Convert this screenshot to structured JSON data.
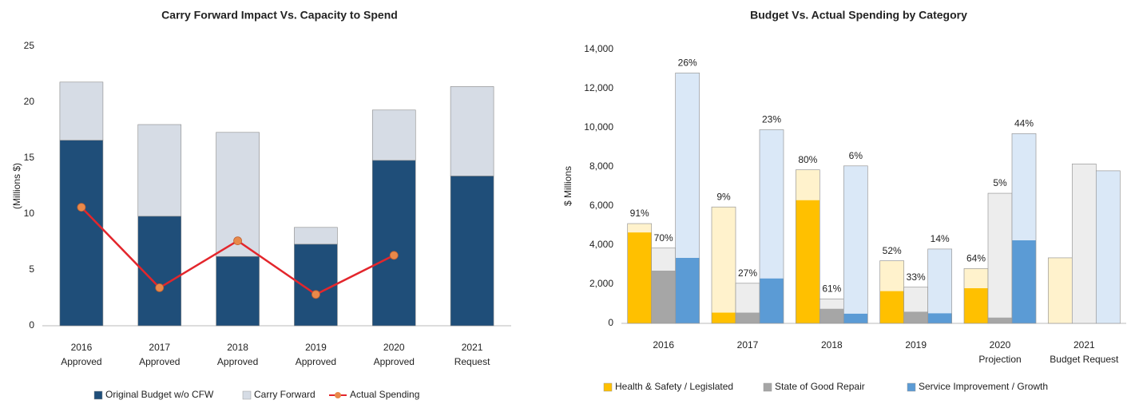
{
  "chart_data": [
    {
      "type": "combo",
      "title": "Carry Forward Impact Vs. Capacity to Spend",
      "ylabel": "(Millions $)",
      "categories": [
        [
          "2016",
          "Approved"
        ],
        [
          "2017",
          "Approved"
        ],
        [
          "2018",
          "Approved"
        ],
        [
          "2019",
          "Approved"
        ],
        [
          "2020",
          "Approved"
        ],
        [
          "2021",
          "Request"
        ]
      ],
      "ylim": [
        0,
        25
      ],
      "yticks": [
        0,
        5,
        10,
        15,
        20,
        25
      ],
      "series": [
        {
          "name": "Original Budget w/o CFW",
          "color": "#1f4e79",
          "values": [
            16.6,
            9.8,
            6.2,
            7.3,
            14.8,
            13.4
          ]
        },
        {
          "name": "Carry Forward",
          "color": "#d6dce5",
          "values": [
            5.2,
            8.2,
            11.1,
            1.5,
            4.5,
            8.0
          ]
        },
        {
          "name": "Actual Spending",
          "type": "line",
          "color": "#e3262c",
          "marker_color": "#e8894a",
          "values": [
            10.6,
            3.4,
            7.6,
            2.8,
            6.3,
            null
          ]
        }
      ]
    },
    {
      "type": "bar",
      "title": "Budget Vs. Actual Spending by Category",
      "ylabel": "$ Millions",
      "categories": [
        [
          "2016"
        ],
        [
          "2017"
        ],
        [
          "2018"
        ],
        [
          "2019"
        ],
        [
          "2020",
          "Projection"
        ],
        [
          "2021",
          "Budget Request"
        ]
      ],
      "ylim": [
        0,
        14000
      ],
      "yticks": [
        0,
        {
          "value": 2000,
          "label": "2,000"
        },
        {
          "value": 4000,
          "label": "4,000"
        },
        {
          "value": 6000,
          "label": "6,000"
        },
        {
          "value": 8000,
          "label": "8,000"
        },
        {
          "value": 10000,
          "label": "10,000"
        },
        {
          "value": 12000,
          "label": "12,000"
        },
        {
          "value": 14000,
          "label": "14,000"
        }
      ],
      "series": [
        {
          "name": "Health & Safety / Legislated",
          "color": "#ffc000",
          "light_color": "#fff2cc",
          "values": [
            4650,
            550,
            6300,
            1650,
            1800,
            0
          ],
          "remaining": [
            450,
            5400,
            1550,
            1550,
            1000,
            3350
          ],
          "value_labels": [
            "91%",
            "9%",
            "80%",
            "52%",
            "64%",
            null
          ]
        },
        {
          "name": "State of Good Repair",
          "color": "#a6a6a6",
          "light_color": "#ededed",
          "values": [
            2700,
            550,
            750,
            600,
            300,
            0
          ],
          "remaining": [
            1150,
            1500,
            500,
            1250,
            6350,
            8150
          ],
          "value_labels": [
            "70%",
            "27%",
            "61%",
            "33%",
            "5%",
            null
          ]
        },
        {
          "name": "Service Improvement / Growth",
          "color": "#5b9bd5",
          "light_color": "#dae8f7",
          "values": [
            3350,
            2300,
            500,
            520,
            4250,
            0
          ],
          "remaining": [
            9450,
            7600,
            7550,
            3280,
            5450,
            7800
          ],
          "value_labels": [
            "26%",
            "23%",
            "6%",
            "14%",
            "44%",
            null
          ]
        }
      ]
    }
  ]
}
